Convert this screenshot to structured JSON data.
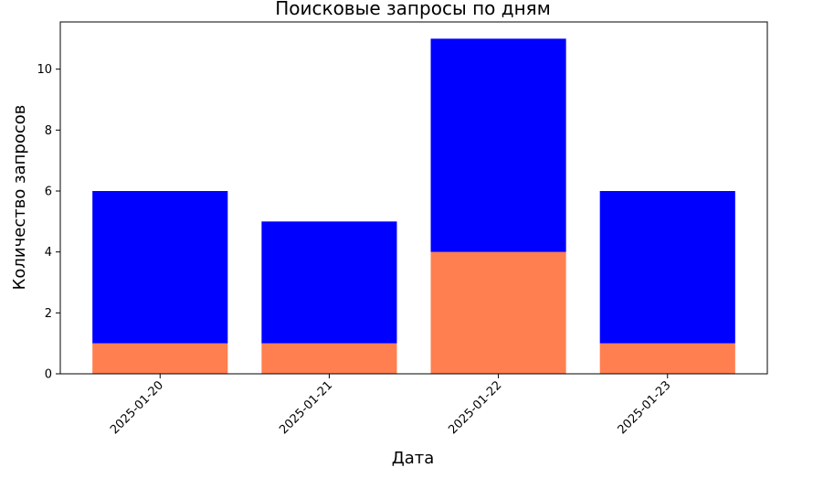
{
  "chart_data": {
    "type": "bar",
    "stacked": true,
    "title": "Поисковые запросы по дням",
    "xlabel": "Дата",
    "ylabel": "Количество запросов",
    "categories": [
      "2025-01-20",
      "2025-01-21",
      "2025-01-22",
      "2025-01-23"
    ],
    "series": [
      {
        "values": [
          1,
          1,
          4,
          1
        ],
        "color": "#ff7f50"
      },
      {
        "values": [
          5,
          4,
          7,
          5
        ],
        "color": "#0000ff"
      }
    ],
    "ylim": [
      0,
      11.55
    ],
    "yticks": [
      0,
      2,
      4,
      6,
      8,
      10
    ],
    "grid": false,
    "legend": "none"
  }
}
